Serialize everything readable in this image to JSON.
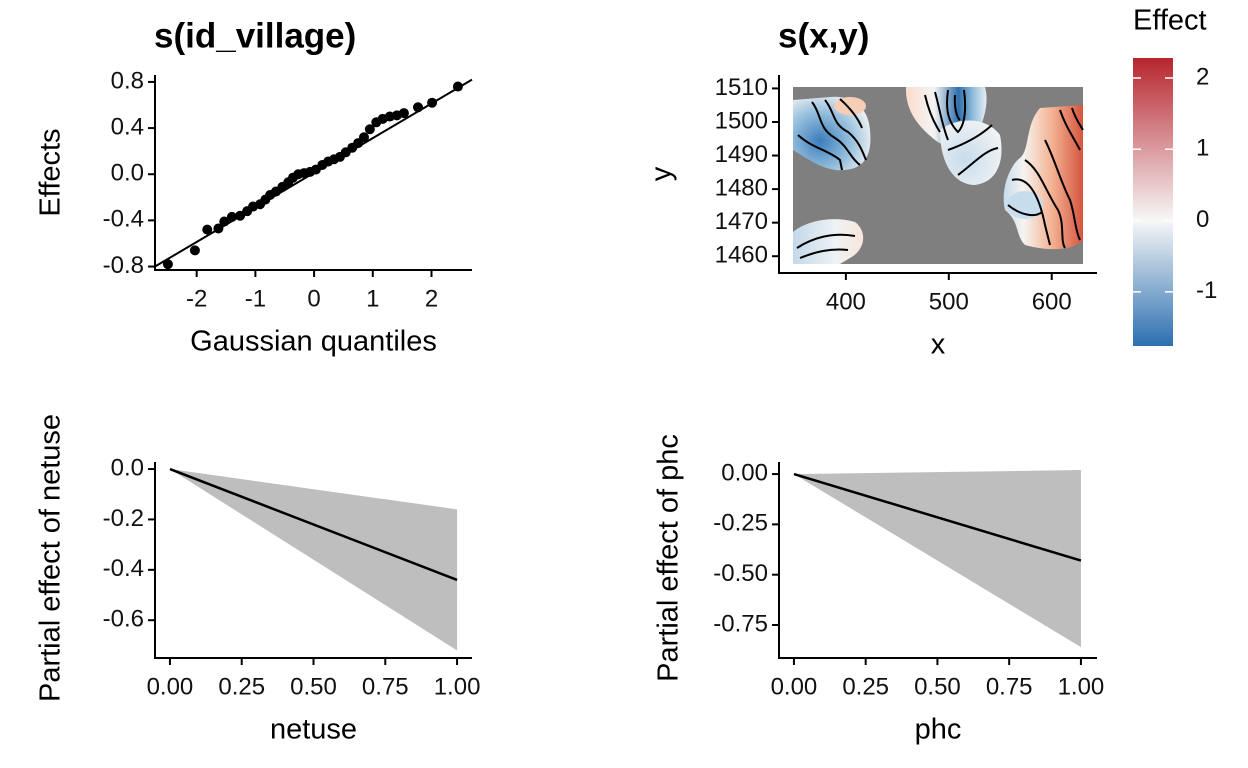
{
  "chart_data": [
    {
      "type": "scatter",
      "title": "s(id_village)",
      "x_label": "Gaussian quantiles",
      "y_label": "Effects",
      "x": [
        -2.49,
        -2.03,
        -1.82,
        -1.63,
        -1.53,
        -1.4,
        -1.26,
        -1.14,
        -1.04,
        -0.92,
        -0.83,
        -0.75,
        -0.65,
        -0.54,
        -0.44,
        -0.36,
        -0.27,
        -0.17,
        -0.07,
        0.03,
        0.14,
        0.24,
        0.34,
        0.44,
        0.54,
        0.65,
        0.75,
        0.85,
        0.95,
        1.06,
        1.17,
        1.29,
        1.41,
        1.53,
        1.77,
        2.01,
        2.45
      ],
      "values": [
        -0.78,
        -0.66,
        -0.48,
        -0.47,
        -0.41,
        -0.37,
        -0.36,
        -0.32,
        -0.28,
        -0.26,
        -0.22,
        -0.18,
        -0.15,
        -0.11,
        -0.07,
        -0.03,
        0.0,
        0.01,
        0.02,
        0.04,
        0.08,
        0.11,
        0.13,
        0.15,
        0.19,
        0.23,
        0.27,
        0.32,
        0.39,
        0.45,
        0.48,
        0.5,
        0.51,
        0.53,
        0.58,
        0.62,
        0.76
      ],
      "color": "#000000",
      "reference_line": {
        "x": [
          -2.71,
          2.69
        ],
        "values": [
          -0.8,
          0.82
        ]
      },
      "xlim": [
        -2.71,
        2.69
      ],
      "ylim": [
        -0.83,
        0.86
      ],
      "xticks": [
        -2,
        -1,
        0,
        1,
        2
      ],
      "yticks": [
        0.8,
        0.4,
        {
          "value": 0,
          "label": "0.0"
        },
        -0.4,
        -0.8
      ]
    },
    {
      "type": "heatmap",
      "title": "s(x,y)",
      "x_label": "x",
      "y_label": "y",
      "xlim": [
        335,
        644
      ],
      "ylim": [
        1455,
        1514
      ],
      "xticks": [
        400,
        500,
        600
      ],
      "yticks": [
        1460,
        1470,
        1480,
        1490,
        1500,
        1510
      ],
      "background": "#7f7f7f",
      "colorbar": {
        "title": "Effect",
        "lim": [
          -1.76,
          2.28
        ],
        "ticks": [
          -1,
          0,
          1,
          2
        ],
        "colors": [
          "#2c6fb0",
          "#f7f7f7",
          "#b7252e"
        ]
      }
    },
    {
      "type": "line",
      "x_label": "netuse",
      "y_label": "Partial effect of netuse",
      "x": [
        0,
        1
      ],
      "values": [
        0,
        -0.44
      ],
      "lower": [
        0,
        -0.72
      ],
      "upper": [
        0,
        -0.16
      ],
      "color": "#000000",
      "band_color": "#bebebe",
      "xlim": [
        -0.052,
        1.052
      ],
      "ylim": [
        -0.75,
        0.028
      ],
      "xticks": [
        {
          "value": 0,
          "label": "0.00"
        },
        0.25,
        {
          "value": 0.5,
          "label": "0.50"
        },
        0.75,
        {
          "value": 1,
          "label": "1.00"
        }
      ],
      "yticks": [
        {
          "value": 0,
          "label": "0.0"
        },
        -0.2,
        -0.4,
        -0.6
      ]
    },
    {
      "type": "line",
      "x_label": "phc",
      "y_label": "Partial effect of phc",
      "x": [
        0,
        1
      ],
      "values": [
        0,
        -0.43
      ],
      "lower": [
        0,
        -0.86
      ],
      "upper": [
        0,
        0.02
      ],
      "color": "#000000",
      "band_color": "#bebebe",
      "xlim": [
        -0.052,
        1.056
      ],
      "ylim": [
        -0.914,
        0.06
      ],
      "xticks": [
        {
          "value": 0,
          "label": "0.00"
        },
        0.25,
        {
          "value": 0.5,
          "label": "0.50"
        },
        0.75,
        {
          "value": 1,
          "label": "1.00"
        }
      ],
      "yticks": [
        {
          "value": 0,
          "label": "0.00"
        },
        -0.25,
        {
          "value": -0.5,
          "label": "-0.50"
        },
        -0.75
      ]
    }
  ]
}
